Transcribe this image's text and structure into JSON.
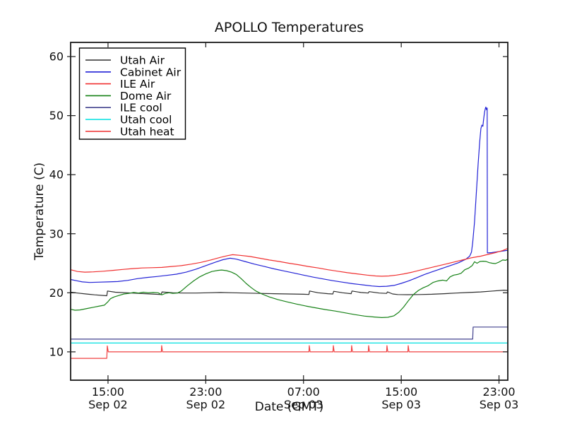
{
  "chart_data": {
    "type": "line",
    "title": "APOLLO Temperatures",
    "xlabel": "Date (GMT)",
    "ylabel": "Temperature (C)",
    "grid": false,
    "legend_position": "upper left",
    "x_unit": "hours since Sep 02 00:00 GMT",
    "xlim": [
      11.94,
      47.72
    ],
    "ylim": [
      5.2,
      62.4
    ],
    "y_ticks": [
      10,
      20,
      30,
      40,
      50,
      60
    ],
    "x_ticks": [
      {
        "hour": 15,
        "time": "15:00",
        "date": "Sep 02"
      },
      {
        "hour": 23,
        "time": "23:00",
        "date": "Sep 02"
      },
      {
        "hour": 31,
        "time": "07:00",
        "date": "Sep 03"
      },
      {
        "hour": 39,
        "time": "15:00",
        "date": "Sep 03"
      },
      {
        "hour": 47,
        "time": "23:00",
        "date": "Sep 03"
      }
    ],
    "series": [
      {
        "name": "Utah Air",
        "color": "#2e2e2e",
        "points": [
          [
            11.94,
            20.1
          ],
          [
            12.5,
            19.95
          ],
          [
            13.2,
            19.8
          ],
          [
            13.9,
            19.65
          ],
          [
            14.6,
            19.55
          ],
          [
            14.9,
            19.5
          ],
          [
            14.96,
            20.3
          ],
          [
            15.6,
            20.1
          ],
          [
            16.5,
            20.0
          ],
          [
            17.5,
            19.9
          ],
          [
            18.5,
            19.8
          ],
          [
            19.35,
            19.7
          ],
          [
            19.42,
            20.15
          ],
          [
            20.3,
            20.0
          ],
          [
            21.2,
            19.95
          ],
          [
            22.2,
            19.95
          ],
          [
            23.2,
            20.0
          ],
          [
            24.2,
            20.05
          ],
          [
            25.2,
            20.0
          ],
          [
            26.2,
            19.95
          ],
          [
            27.4,
            19.9
          ],
          [
            28.6,
            19.85
          ],
          [
            29.8,
            19.8
          ],
          [
            31.0,
            19.75
          ],
          [
            31.44,
            19.72
          ],
          [
            31.5,
            20.3
          ],
          [
            32.2,
            20.0
          ],
          [
            33.0,
            19.85
          ],
          [
            33.4,
            19.8
          ],
          [
            33.47,
            20.25
          ],
          [
            34.2,
            20.0
          ],
          [
            34.9,
            19.85
          ],
          [
            34.97,
            20.3
          ],
          [
            35.7,
            20.05
          ],
          [
            36.3,
            19.95
          ],
          [
            36.37,
            20.2
          ],
          [
            37.2,
            19.95
          ],
          [
            37.8,
            19.9
          ],
          [
            37.87,
            20.15
          ],
          [
            38.3,
            19.8
          ],
          [
            38.7,
            19.7
          ],
          [
            39.5,
            19.68
          ],
          [
            40.5,
            19.7
          ],
          [
            41.5,
            19.75
          ],
          [
            42.5,
            19.85
          ],
          [
            43.5,
            19.95
          ],
          [
            44.5,
            20.05
          ],
          [
            45.5,
            20.15
          ],
          [
            46.5,
            20.3
          ],
          [
            47.4,
            20.45
          ],
          [
            47.72,
            20.4
          ]
        ]
      },
      {
        "name": "Cabinet Air",
        "color": "#2222d6",
        "points": [
          [
            11.94,
            22.25
          ],
          [
            12.4,
            22.05
          ],
          [
            12.9,
            21.85
          ],
          [
            13.5,
            21.75
          ],
          [
            14.2,
            21.8
          ],
          [
            15.0,
            21.85
          ],
          [
            15.8,
            21.9
          ],
          [
            16.6,
            22.1
          ],
          [
            17.4,
            22.4
          ],
          [
            18.2,
            22.6
          ],
          [
            19.0,
            22.75
          ],
          [
            19.8,
            22.95
          ],
          [
            20.6,
            23.15
          ],
          [
            21.4,
            23.5
          ],
          [
            22.2,
            24.0
          ],
          [
            23.0,
            24.6
          ],
          [
            23.8,
            25.2
          ],
          [
            24.4,
            25.6
          ],
          [
            25.0,
            25.85
          ],
          [
            25.5,
            25.7
          ],
          [
            26.2,
            25.3
          ],
          [
            27.0,
            24.85
          ],
          [
            27.8,
            24.45
          ],
          [
            28.6,
            24.05
          ],
          [
            29.4,
            23.7
          ],
          [
            30.2,
            23.35
          ],
          [
            31.0,
            23.0
          ],
          [
            31.8,
            22.65
          ],
          [
            32.6,
            22.35
          ],
          [
            33.4,
            22.05
          ],
          [
            34.2,
            21.8
          ],
          [
            35.0,
            21.55
          ],
          [
            35.8,
            21.35
          ],
          [
            36.6,
            21.15
          ],
          [
            37.2,
            21.05
          ],
          [
            37.8,
            21.1
          ],
          [
            38.4,
            21.25
          ],
          [
            39.0,
            21.6
          ],
          [
            39.6,
            22.0
          ],
          [
            40.2,
            22.5
          ],
          [
            40.9,
            23.1
          ],
          [
            41.6,
            23.6
          ],
          [
            42.3,
            24.1
          ],
          [
            43.0,
            24.6
          ],
          [
            43.7,
            25.1
          ],
          [
            44.3,
            25.7
          ],
          [
            44.6,
            26.2
          ],
          [
            44.75,
            26.9
          ],
          [
            44.85,
            28.5
          ],
          [
            45.0,
            32.0
          ],
          [
            45.15,
            37.0
          ],
          [
            45.3,
            42.0
          ],
          [
            45.42,
            45.5
          ],
          [
            45.52,
            47.8
          ],
          [
            45.6,
            48.4
          ],
          [
            45.68,
            48.2
          ],
          [
            45.74,
            49.3
          ],
          [
            45.82,
            50.6
          ],
          [
            45.88,
            51.2
          ],
          [
            45.92,
            51.45
          ],
          [
            45.98,
            51.0
          ],
          [
            46.03,
            51.3
          ],
          [
            46.05,
            26.75
          ],
          [
            46.4,
            26.8
          ],
          [
            46.9,
            26.95
          ],
          [
            47.4,
            27.1
          ],
          [
            47.72,
            27.2
          ]
        ]
      },
      {
        "name": "ILE Air",
        "color": "#f03030",
        "points": [
          [
            11.94,
            23.9
          ],
          [
            12.5,
            23.6
          ],
          [
            13.1,
            23.5
          ],
          [
            13.8,
            23.55
          ],
          [
            14.6,
            23.65
          ],
          [
            15.4,
            23.8
          ],
          [
            16.2,
            23.95
          ],
          [
            17.0,
            24.1
          ],
          [
            17.8,
            24.2
          ],
          [
            18.6,
            24.25
          ],
          [
            19.4,
            24.3
          ],
          [
            20.2,
            24.45
          ],
          [
            21.0,
            24.6
          ],
          [
            21.8,
            24.85
          ],
          [
            22.6,
            25.15
          ],
          [
            23.4,
            25.55
          ],
          [
            24.2,
            26.0
          ],
          [
            24.8,
            26.3
          ],
          [
            25.2,
            26.45
          ],
          [
            25.8,
            26.35
          ],
          [
            26.6,
            26.15
          ],
          [
            27.4,
            25.85
          ],
          [
            28.2,
            25.55
          ],
          [
            29.0,
            25.3
          ],
          [
            29.8,
            25.0
          ],
          [
            30.6,
            24.75
          ],
          [
            31.4,
            24.45
          ],
          [
            32.2,
            24.2
          ],
          [
            33.0,
            23.9
          ],
          [
            33.8,
            23.65
          ],
          [
            34.6,
            23.4
          ],
          [
            35.4,
            23.2
          ],
          [
            36.2,
            23.0
          ],
          [
            36.9,
            22.85
          ],
          [
            37.4,
            22.8
          ],
          [
            38.0,
            22.85
          ],
          [
            38.6,
            23.0
          ],
          [
            39.2,
            23.2
          ],
          [
            39.9,
            23.5
          ],
          [
            40.6,
            23.85
          ],
          [
            41.3,
            24.2
          ],
          [
            42.0,
            24.55
          ],
          [
            42.7,
            24.9
          ],
          [
            43.4,
            25.25
          ],
          [
            44.1,
            25.6
          ],
          [
            44.8,
            25.95
          ],
          [
            45.5,
            26.2
          ],
          [
            46.1,
            26.5
          ],
          [
            46.7,
            26.8
          ],
          [
            47.3,
            27.15
          ],
          [
            47.72,
            27.5
          ]
        ]
      },
      {
        "name": "Dome Air",
        "color": "#178217",
        "points": [
          [
            11.94,
            17.2
          ],
          [
            12.3,
            17.05
          ],
          [
            12.7,
            17.1
          ],
          [
            13.2,
            17.3
          ],
          [
            13.8,
            17.55
          ],
          [
            14.3,
            17.75
          ],
          [
            14.7,
            17.9
          ],
          [
            15.0,
            18.5
          ],
          [
            15.2,
            19.0
          ],
          [
            15.5,
            19.3
          ],
          [
            15.9,
            19.55
          ],
          [
            16.3,
            19.8
          ],
          [
            16.7,
            19.9
          ],
          [
            17.1,
            20.05
          ],
          [
            17.5,
            19.95
          ],
          [
            17.9,
            20.1
          ],
          [
            18.3,
            20.0
          ],
          [
            18.7,
            20.05
          ],
          [
            19.1,
            20.0
          ],
          [
            19.4,
            19.65
          ],
          [
            19.7,
            19.9
          ],
          [
            20.0,
            20.0
          ],
          [
            20.3,
            19.9
          ],
          [
            20.7,
            19.95
          ],
          [
            21.0,
            20.3
          ],
          [
            21.5,
            21.2
          ],
          [
            22.0,
            22.0
          ],
          [
            22.5,
            22.7
          ],
          [
            23.0,
            23.2
          ],
          [
            23.5,
            23.6
          ],
          [
            24.0,
            23.8
          ],
          [
            24.3,
            23.85
          ],
          [
            24.7,
            23.75
          ],
          [
            25.1,
            23.5
          ],
          [
            25.5,
            23.1
          ],
          [
            25.9,
            22.4
          ],
          [
            26.3,
            21.6
          ],
          [
            26.7,
            20.9
          ],
          [
            27.1,
            20.3
          ],
          [
            27.6,
            19.8
          ],
          [
            28.2,
            19.3
          ],
          [
            28.9,
            18.85
          ],
          [
            29.6,
            18.5
          ],
          [
            30.4,
            18.1
          ],
          [
            31.2,
            17.75
          ],
          [
            32.0,
            17.45
          ],
          [
            32.8,
            17.15
          ],
          [
            33.6,
            16.9
          ],
          [
            34.4,
            16.6
          ],
          [
            35.2,
            16.3
          ],
          [
            36.0,
            16.05
          ],
          [
            36.8,
            15.9
          ],
          [
            37.4,
            15.8
          ],
          [
            37.9,
            15.85
          ],
          [
            38.4,
            16.1
          ],
          [
            38.8,
            16.7
          ],
          [
            39.2,
            17.6
          ],
          [
            39.6,
            18.7
          ],
          [
            40.0,
            19.7
          ],
          [
            40.4,
            20.4
          ],
          [
            40.8,
            20.85
          ],
          [
            41.2,
            21.2
          ],
          [
            41.6,
            21.75
          ],
          [
            42.0,
            22.0
          ],
          [
            42.4,
            22.15
          ],
          [
            42.7,
            22.0
          ],
          [
            43.0,
            22.7
          ],
          [
            43.3,
            23.0
          ],
          [
            43.6,
            23.1
          ],
          [
            43.9,
            23.3
          ],
          [
            44.2,
            23.9
          ],
          [
            44.5,
            24.15
          ],
          [
            44.8,
            24.6
          ],
          [
            45.0,
            25.25
          ],
          [
            45.2,
            25.0
          ],
          [
            45.45,
            25.3
          ],
          [
            45.7,
            25.35
          ],
          [
            45.95,
            25.3
          ],
          [
            46.2,
            25.1
          ],
          [
            46.45,
            25.0
          ],
          [
            46.7,
            24.95
          ],
          [
            47.0,
            25.2
          ],
          [
            47.3,
            25.55
          ],
          [
            47.55,
            25.5
          ],
          [
            47.72,
            25.7
          ]
        ]
      },
      {
        "name": "ILE cool",
        "color": "#42428e",
        "points": [
          [
            11.94,
            12.15
          ],
          [
            44.85,
            12.15
          ],
          [
            44.88,
            14.2
          ],
          [
            47.72,
            14.2
          ]
        ]
      },
      {
        "name": "Utah cool",
        "color": "#00e0e0",
        "points": [
          [
            11.94,
            11.5
          ],
          [
            47.72,
            11.5
          ]
        ]
      },
      {
        "name": "Utah heat",
        "color": "#f04040",
        "points": [
          [
            11.94,
            8.9
          ],
          [
            14.9,
            8.9
          ],
          [
            14.94,
            11.0
          ],
          [
            15.02,
            10.0
          ],
          [
            19.36,
            10.0
          ],
          [
            19.39,
            11.05
          ],
          [
            19.46,
            10.0
          ],
          [
            31.44,
            10.0
          ],
          [
            31.47,
            11.05
          ],
          [
            31.54,
            10.0
          ],
          [
            33.41,
            10.0
          ],
          [
            33.44,
            11.05
          ],
          [
            33.51,
            10.0
          ],
          [
            34.91,
            10.0
          ],
          [
            34.94,
            11.05
          ],
          [
            35.01,
            10.0
          ],
          [
            36.3,
            10.0
          ],
          [
            36.33,
            11.05
          ],
          [
            36.4,
            10.0
          ],
          [
            37.8,
            10.0
          ],
          [
            37.83,
            11.05
          ],
          [
            37.9,
            10.0
          ],
          [
            39.54,
            10.0
          ],
          [
            39.57,
            11.05
          ],
          [
            39.64,
            10.0
          ],
          [
            47.72,
            10.0
          ]
        ]
      }
    ]
  }
}
